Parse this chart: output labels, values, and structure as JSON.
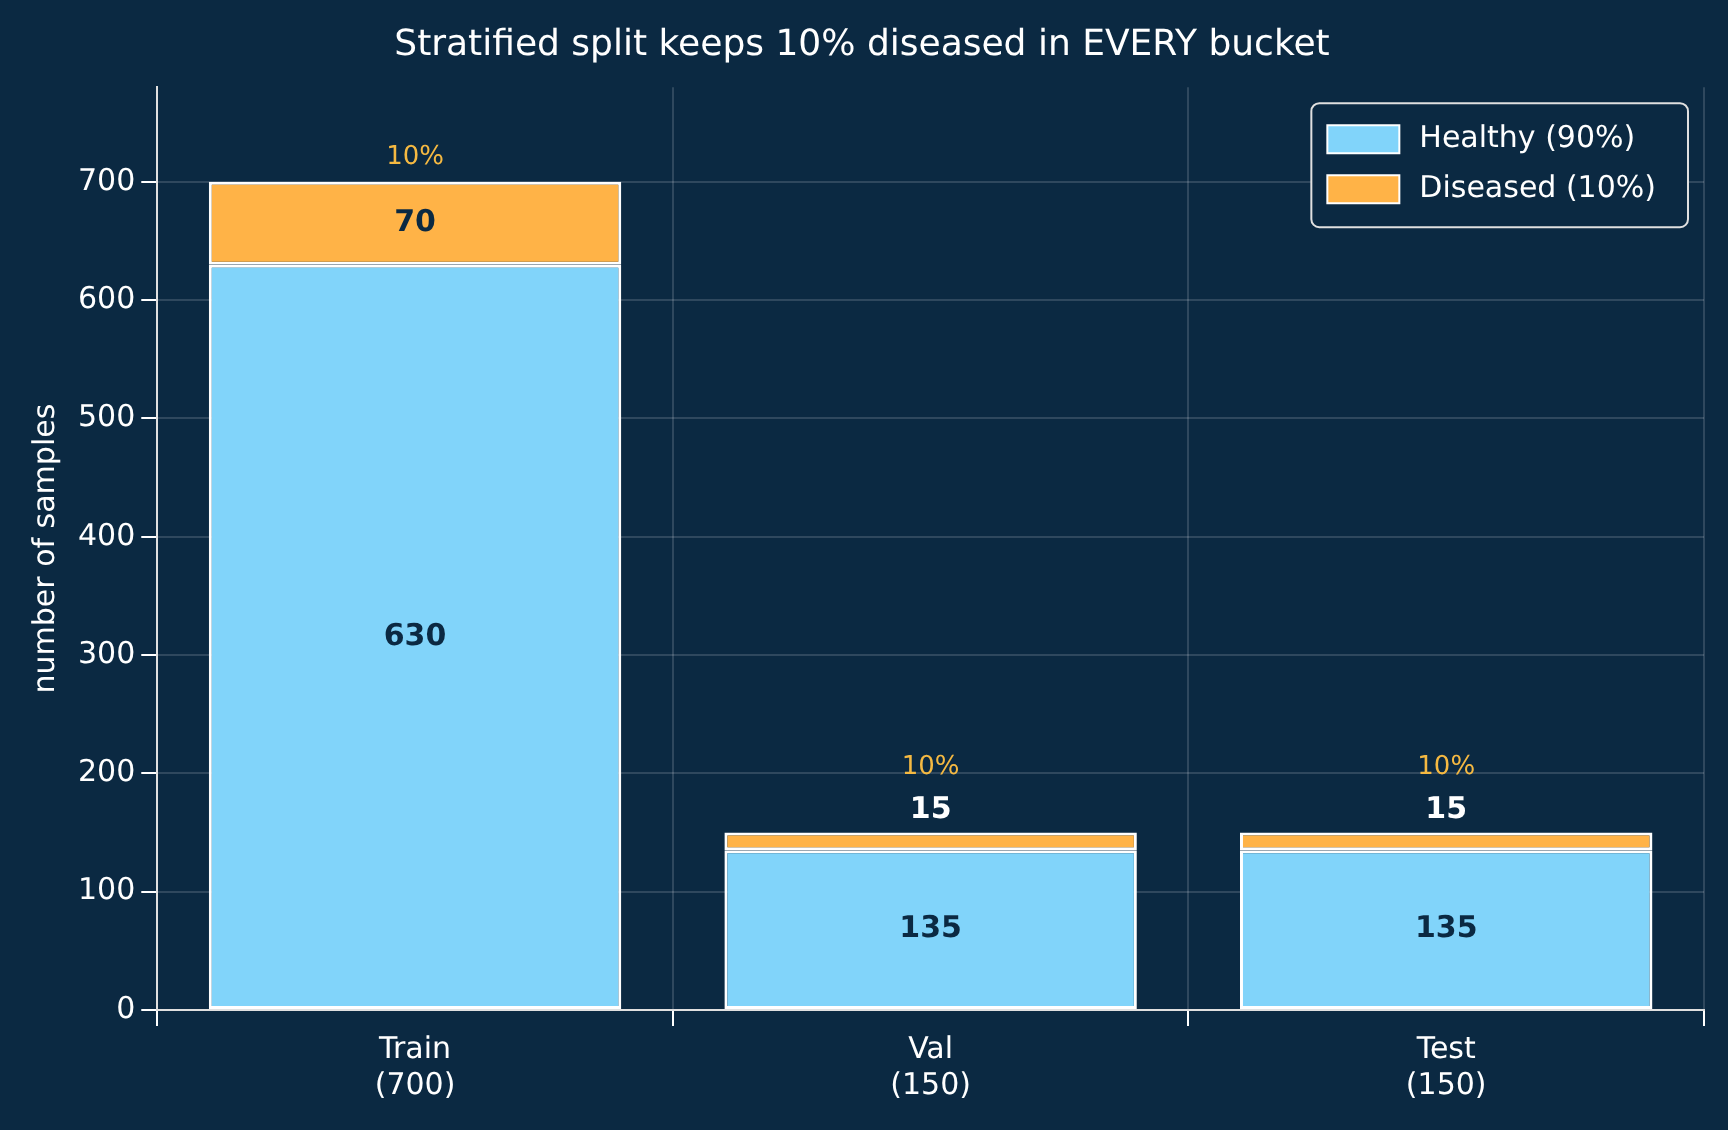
{
  "chart_data": {
    "type": "bar",
    "title": "Stratified split keeps 10% diseased in EVERY bucket",
    "ylabel": "number of samples",
    "categories": [
      "Train\n(700)",
      "Val\n(150)",
      "Test\n(150)"
    ],
    "series": [
      {
        "name": "Healthy (90%)",
        "color": "#81d4fa",
        "values": [
          630,
          135,
          135
        ]
      },
      {
        "name": "Diseased (10%)",
        "color": "#ffb347",
        "values": [
          70,
          15,
          15
        ]
      }
    ],
    "stacked": true,
    "data_labels": true,
    "ylim": [
      0,
      780
    ],
    "yticks": [
      0,
      100,
      200,
      300,
      400,
      500,
      600,
      700
    ],
    "grid": true,
    "legend": "top right",
    "annotations": [
      {
        "text": "10%",
        "x": "Train\n(700)",
        "y": 700
      },
      {
        "text": "10%",
        "x": "Val\n(150)",
        "y": 150
      },
      {
        "text": "10%",
        "x": "Test\n(150)",
        "y": 150
      }
    ]
  }
}
